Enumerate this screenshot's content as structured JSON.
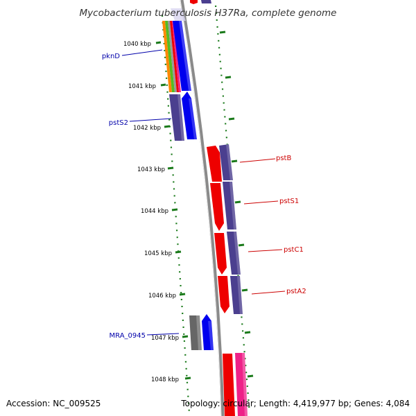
{
  "title": "Mycobacterium tuberculosis H37Ra, complete genome",
  "footer": {
    "accession": "Accession: NC_009525",
    "stats": "Topology: circular; Length: 4,419,977 bp; Genes: 4,084"
  },
  "kbp_labels": [
    "1040 kbp",
    "1041 kbp",
    "1042 kbp",
    "1043 kbp",
    "1044 kbp",
    "1045 kbp",
    "1046 kbp",
    "1047 kbp",
    "1048 kbp"
  ],
  "gene_labels": {
    "left": [
      "pknD",
      "pstS2",
      "MRA_0945"
    ],
    "right": [
      "pstB",
      "pstS1",
      "pstC1",
      "pstA2"
    ]
  },
  "colors": {
    "backbone": "#8a8a8a",
    "tick": "#1a7a1a",
    "left_label": "#0000aa",
    "right_label": "#cc0000",
    "blue": "#0000ee",
    "purple": "#4b3f8f",
    "red": "#ee0000",
    "pink": "#ee2288",
    "gray": "#666666",
    "orange": "#ff8800",
    "green": "#55bb22"
  }
}
